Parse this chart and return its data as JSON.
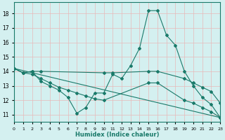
{
  "xlabel": "Humidex (Indice chaleur)",
  "bg_color": "#d4f0f0",
  "grid_color": "#e8b8b8",
  "line_color": "#1a7a6a",
  "xlim": [
    0,
    23
  ],
  "ylim": [
    10.5,
    18.8
  ],
  "yticks": [
    11,
    12,
    13,
    14,
    15,
    16,
    17,
    18
  ],
  "xticks": [
    0,
    1,
    2,
    3,
    4,
    5,
    6,
    7,
    8,
    9,
    10,
    11,
    12,
    13,
    14,
    15,
    16,
    17,
    18,
    19,
    20,
    21,
    22,
    23
  ],
  "line1": {
    "x": [
      0,
      1,
      2,
      3,
      4,
      5,
      6,
      7,
      8,
      9,
      10,
      11,
      12,
      13,
      14,
      15,
      16,
      17,
      18,
      19,
      20,
      21,
      22,
      23
    ],
    "y": [
      14.2,
      13.9,
      14.0,
      13.3,
      13.0,
      12.7,
      12.2,
      11.1,
      11.5,
      12.5,
      12.5,
      13.8,
      13.5,
      14.4,
      15.6,
      18.2,
      18.2,
      16.5,
      15.8,
      14.0,
      13.0,
      12.2,
      11.7,
      10.8
    ]
  },
  "line2": {
    "x": [
      0,
      1,
      2,
      3,
      10,
      11,
      15,
      16,
      19,
      20,
      21,
      22,
      23
    ],
    "y": [
      14.2,
      13.9,
      14.0,
      14.0,
      13.9,
      13.9,
      14.0,
      14.0,
      13.5,
      13.2,
      12.9,
      12.6,
      11.8
    ]
  },
  "line3": {
    "x": [
      0,
      23
    ],
    "y": [
      14.2,
      10.8
    ]
  },
  "line4": {
    "x": [
      0,
      1,
      2,
      3,
      4,
      5,
      6,
      7,
      8,
      9,
      10,
      15,
      16,
      19,
      20,
      21,
      22,
      23
    ],
    "y": [
      14.2,
      13.9,
      13.8,
      13.5,
      13.2,
      12.9,
      12.7,
      12.5,
      12.3,
      12.1,
      12.0,
      13.2,
      13.2,
      12.0,
      11.8,
      11.5,
      11.2,
      10.8
    ]
  }
}
